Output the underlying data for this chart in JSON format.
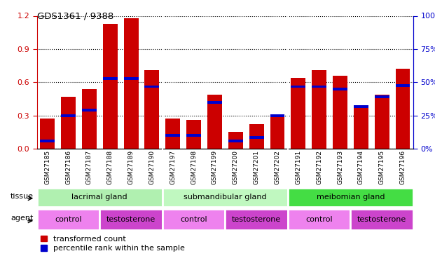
{
  "title": "GDS1361 / 9388",
  "samples": [
    "GSM27185",
    "GSM27186",
    "GSM27187",
    "GSM27188",
    "GSM27189",
    "GSM27190",
    "GSM27197",
    "GSM27198",
    "GSM27199",
    "GSM27200",
    "GSM27201",
    "GSM27202",
    "GSM27191",
    "GSM27192",
    "GSM27193",
    "GSM27194",
    "GSM27195",
    "GSM27196"
  ],
  "red_values": [
    0.27,
    0.47,
    0.54,
    1.13,
    1.18,
    0.71,
    0.27,
    0.26,
    0.49,
    0.15,
    0.22,
    0.3,
    0.64,
    0.71,
    0.66,
    0.37,
    0.49,
    0.72
  ],
  "blue_values": [
    0.07,
    0.3,
    0.35,
    0.63,
    0.63,
    0.56,
    0.12,
    0.12,
    0.42,
    0.07,
    0.1,
    0.3,
    0.56,
    0.56,
    0.54,
    0.38,
    0.47,
    0.57
  ],
  "tissue_groups": [
    {
      "label": "lacrimal gland",
      "start": 0,
      "end": 5,
      "color": "#b0f0b0"
    },
    {
      "label": "submandibular gland",
      "start": 6,
      "end": 11,
      "color": "#c0f8c0"
    },
    {
      "label": "meibomian gland",
      "start": 12,
      "end": 17,
      "color": "#44dd44"
    }
  ],
  "agent_groups": [
    {
      "label": "control",
      "start": 0,
      "end": 2,
      "color": "#ee82ee"
    },
    {
      "label": "testosterone",
      "start": 3,
      "end": 5,
      "color": "#cc44cc"
    },
    {
      "label": "control",
      "start": 6,
      "end": 8,
      "color": "#ee82ee"
    },
    {
      "label": "testosterone",
      "start": 9,
      "end": 11,
      "color": "#cc44cc"
    },
    {
      "label": "control",
      "start": 12,
      "end": 14,
      "color": "#ee82ee"
    },
    {
      "label": "testosterone",
      "start": 15,
      "end": 17,
      "color": "#cc44cc"
    }
  ],
  "ylim_left": [
    0,
    1.2
  ],
  "ylim_right": [
    0,
    100
  ],
  "yticks_left": [
    0,
    0.3,
    0.6,
    0.9,
    1.2
  ],
  "yticks_right": [
    0,
    25,
    50,
    75,
    100
  ],
  "bar_color_red": "#cc0000",
  "bar_color_blue": "#0000cc",
  "bar_width": 0.7,
  "plot_bg": "#ffffff",
  "legend_red": "transformed count",
  "legend_blue": "percentile rank within the sample",
  "left_axis_color": "#cc0000",
  "right_axis_color": "#0000cc",
  "xtick_bg": "#c8c8c8",
  "group_sep": [
    5.5,
    11.5
  ],
  "agent_sep": [
    2.5,
    5.5,
    8.5,
    11.5,
    14.5
  ]
}
